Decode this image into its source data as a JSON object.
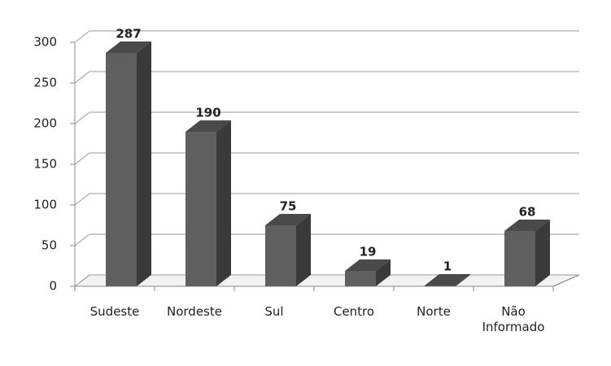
{
  "chart_data": {
    "type": "bar3d",
    "categories": [
      "Sudeste",
      "Nordeste",
      "Sul",
      "Centro",
      "Norte",
      "Não Informado"
    ],
    "values": [
      287,
      190,
      75,
      19,
      1,
      68
    ],
    "color": "#5f5f5f",
    "ylim": [
      0,
      300
    ],
    "yticks": [
      0,
      50,
      100,
      150,
      200,
      250,
      300
    ],
    "grid": true
  }
}
